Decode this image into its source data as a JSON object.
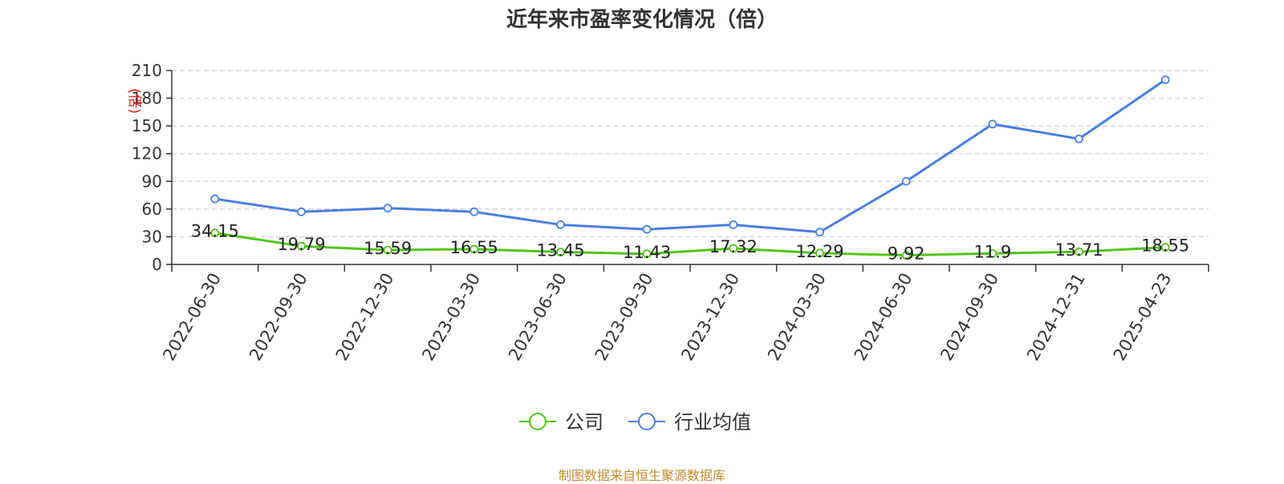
{
  "chart_data": {
    "type": "line",
    "title": "近年来市盈率变化情况（倍）",
    "ylabel": "(倍)",
    "xlabel": "",
    "ylim": [
      0,
      210
    ],
    "yticks": [
      0,
      30,
      60,
      90,
      120,
      150,
      180,
      210
    ],
    "grid": true,
    "legend_position": "bottom-center",
    "categories": [
      "2022-06-30",
      "2022-09-30",
      "2022-12-30",
      "2023-03-30",
      "2023-06-30",
      "2023-09-30",
      "2023-12-30",
      "2024-03-30",
      "2024-06-30",
      "2024-09-30",
      "2024-12-31",
      "2025-04-23"
    ],
    "series": [
      {
        "name": "公司",
        "color": "#52c41a",
        "values": [
          34.15,
          19.79,
          15.59,
          16.55,
          13.45,
          11.43,
          17.32,
          12.29,
          9.92,
          11.9,
          13.71,
          18.55
        ],
        "value_labels": [
          "34.15",
          "19.79",
          "15.59",
          "16.55",
          "13.45",
          "11.43",
          "17.32",
          "12.29",
          "9.92",
          "11.9",
          "13.71",
          "18.55"
        ]
      },
      {
        "name": "行业均值",
        "color": "#4a7fe0",
        "values": [
          71,
          57,
          61,
          57,
          43,
          38,
          43,
          35,
          90,
          152,
          136,
          200
        ]
      }
    ]
  },
  "footer": {
    "source": "制图数据来自恒生聚源数据库"
  }
}
